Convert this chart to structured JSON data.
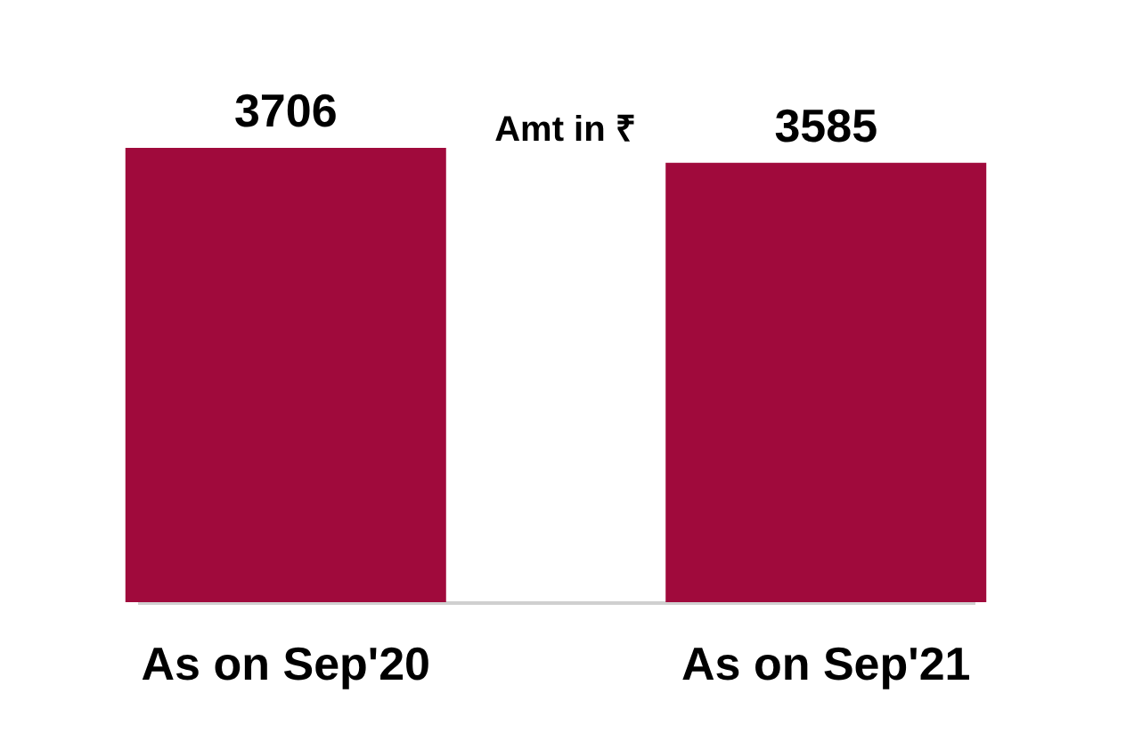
{
  "chart_data": {
    "type": "bar",
    "categories": [
      "As on Sep'20",
      "As on Sep'21"
    ],
    "values": [
      3706,
      3585
    ],
    "color": "#a00a3c",
    "data_labels": true,
    "annotations": [
      "Amt in ₹"
    ]
  }
}
